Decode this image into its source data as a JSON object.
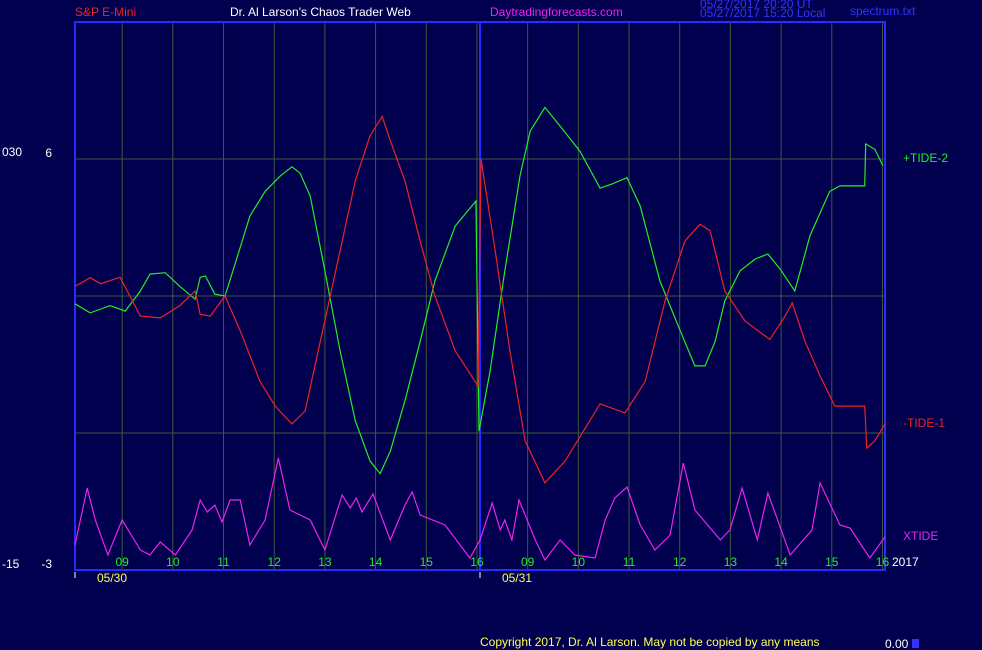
{
  "chart_data": {
    "type": "line",
    "header": {
      "instrument": "S&P E-Mini",
      "site": "Dr. Al Larson's Chaos Trader Web",
      "url": "Daytradingforecasts.com",
      "stamp_ut": "05/27/2017 20:20 UT",
      "stamp_local": "05/27/2017 15:20 Local",
      "file": "spectrum.txt"
    },
    "copyright": "Copyright 2017, Dr. Al Larson. May not be copied by any means",
    "footer_value": "0.00",
    "year": "2017",
    "xlim": [
      0.07,
      16.05
    ],
    "xticks": [
      {
        "value": 1,
        "label": "09"
      },
      {
        "value": 2,
        "label": "10"
      },
      {
        "value": 3,
        "label": "11"
      },
      {
        "value": 4,
        "label": "12"
      },
      {
        "value": 5,
        "label": "13"
      },
      {
        "value": 6,
        "label": "14"
      },
      {
        "value": 7,
        "label": "15"
      },
      {
        "value": 8,
        "label": "16"
      },
      {
        "value": 9,
        "label": "09"
      },
      {
        "value": 10,
        "label": "10"
      },
      {
        "value": 11,
        "label": "11"
      },
      {
        "value": 12,
        "label": "12"
      },
      {
        "value": 13,
        "label": "13"
      },
      {
        "value": 14,
        "label": "14"
      },
      {
        "value": 15,
        "label": "15"
      },
      {
        "value": 16,
        "label": "16"
      }
    ],
    "date_labels": [
      {
        "value": 0.07,
        "label": "05/30"
      },
      {
        "value": 8.06,
        "label": "05/31"
      }
    ],
    "day_divider": 8.06,
    "ylim": [
      -3,
      9
    ],
    "yticks": [
      6,
      -3
    ],
    "ygrid": [
      6,
      3,
      0
    ],
    "y2lim": [
      -15,
      44.85
    ],
    "y2ticks": [
      {
        "value": 30,
        "label": "030"
      },
      -15
    ],
    "grid": true,
    "series": [
      {
        "name": "+TIDE-2",
        "color": "#22ee22",
        "x": [
          0.07,
          0.37,
          0.76,
          1.06,
          1.36,
          1.55,
          1.85,
          2.14,
          2.44,
          2.54,
          2.64,
          2.83,
          3.03,
          3.23,
          3.52,
          3.82,
          4.12,
          4.35,
          4.51,
          4.71,
          5.0,
          5.3,
          5.6,
          5.89,
          6.09,
          6.29,
          6.58,
          6.88,
          7.17,
          7.57,
          7.98,
          8.04,
          8.26,
          8.55,
          8.85,
          9.05,
          9.34,
          9.64,
          10.03,
          10.43,
          10.66,
          10.96,
          11.22,
          11.61,
          12.01,
          12.3,
          12.5,
          12.7,
          12.89,
          13.19,
          13.49,
          13.74,
          13.98,
          14.27,
          14.57,
          14.96,
          15.16,
          15.65,
          15.67,
          15.85,
          16.01
        ],
        "values": [
          2.83,
          2.63,
          2.79,
          2.67,
          3.11,
          3.48,
          3.51,
          3.21,
          2.93,
          3.41,
          3.44,
          3.04,
          3.0,
          3.71,
          4.75,
          5.29,
          5.63,
          5.83,
          5.69,
          5.19,
          3.55,
          1.8,
          0.27,
          -0.61,
          -0.89,
          -0.4,
          0.71,
          2.01,
          3.33,
          4.53,
          5.08,
          0.04,
          1.36,
          3.55,
          5.63,
          6.61,
          7.13,
          6.72,
          6.17,
          5.36,
          5.45,
          5.59,
          4.97,
          3.33,
          2.24,
          1.47,
          1.47,
          2.01,
          2.89,
          3.55,
          3.81,
          3.92,
          3.59,
          3.11,
          4.32,
          5.29,
          5.41,
          5.41,
          6.33,
          6.21,
          5.85
        ]
      },
      {
        "name": "-TIDE-1",
        "color": "#ee2222",
        "x": [
          0.07,
          0.37,
          0.57,
          0.96,
          1.36,
          1.75,
          2.14,
          2.44,
          2.54,
          2.74,
          3.03,
          3.33,
          3.72,
          4.02,
          4.35,
          4.61,
          4.91,
          5.3,
          5.6,
          5.89,
          6.13,
          6.29,
          6.58,
          6.88,
          7.17,
          7.57,
          8.02,
          8.08,
          8.36,
          8.65,
          8.95,
          9.34,
          9.74,
          10.43,
          10.92,
          11.32,
          11.71,
          12.1,
          12.4,
          12.6,
          12.89,
          13.29,
          13.78,
          14.08,
          14.22,
          14.47,
          14.77,
          15.06,
          15.65,
          15.69,
          15.85,
          16.05
        ],
        "values": [
          3.21,
          3.4,
          3.27,
          3.41,
          2.56,
          2.52,
          2.79,
          3.11,
          2.6,
          2.56,
          3.0,
          2.24,
          1.13,
          0.59,
          0.2,
          0.48,
          2.01,
          3.99,
          5.52,
          6.51,
          6.93,
          6.4,
          5.52,
          4.2,
          3.0,
          1.8,
          1.03,
          6.0,
          3.99,
          1.8,
          -0.17,
          -1.09,
          -0.61,
          0.64,
          0.44,
          1.13,
          2.89,
          4.2,
          4.57,
          4.43,
          3.11,
          2.45,
          2.05,
          2.56,
          2.85,
          2.01,
          1.25,
          0.59,
          0.59,
          -0.33,
          -0.17,
          0.2
        ]
      },
      {
        "name": "XTIDE",
        "color": "#ee22ee",
        "axis": "y2",
        "x": [
          0.07,
          0.31,
          0.47,
          0.72,
          1.0,
          1.36,
          1.55,
          1.75,
          2.05,
          2.38,
          2.54,
          2.68,
          2.83,
          2.97,
          3.13,
          3.33,
          3.52,
          3.82,
          4.08,
          4.31,
          4.71,
          5.0,
          5.34,
          5.5,
          5.62,
          5.73,
          5.95,
          6.29,
          6.58,
          6.72,
          6.88,
          7.37,
          7.86,
          8.06,
          8.3,
          8.46,
          8.55,
          8.69,
          8.83,
          9.15,
          9.34,
          9.64,
          9.93,
          10.33,
          10.53,
          10.72,
          10.96,
          11.22,
          11.51,
          11.81,
          12.07,
          12.3,
          12.8,
          12.99,
          13.23,
          13.53,
          13.74,
          14.18,
          14.61,
          14.77,
          15.16,
          15.36,
          15.75,
          16.05
        ],
        "values": [
          -12.27,
          -6.05,
          -9.54,
          -13.36,
          -9.54,
          -12.82,
          -13.36,
          -11.94,
          -13.36,
          -10.63,
          -7.36,
          -8.67,
          -7.9,
          -9.76,
          -7.36,
          -7.36,
          -12.27,
          -9.54,
          -2.77,
          -8.45,
          -9.54,
          -12.82,
          -6.81,
          -8.23,
          -7.14,
          -8.67,
          -6.7,
          -11.72,
          -7.9,
          -6.48,
          -8.99,
          -10.09,
          -13.69,
          -11.72,
          -7.68,
          -10.63,
          -9.54,
          -11.72,
          -7.36,
          -11.72,
          -13.91,
          -11.72,
          -13.36,
          -13.69,
          -9.54,
          -7.14,
          -5.94,
          -10.09,
          -12.82,
          -11.18,
          -3.32,
          -8.45,
          -11.72,
          -10.63,
          -6.05,
          -11.72,
          -6.59,
          -13.36,
          -10.63,
          -5.5,
          -10.09,
          -10.41,
          -13.69,
          -11.4
        ]
      }
    ]
  }
}
